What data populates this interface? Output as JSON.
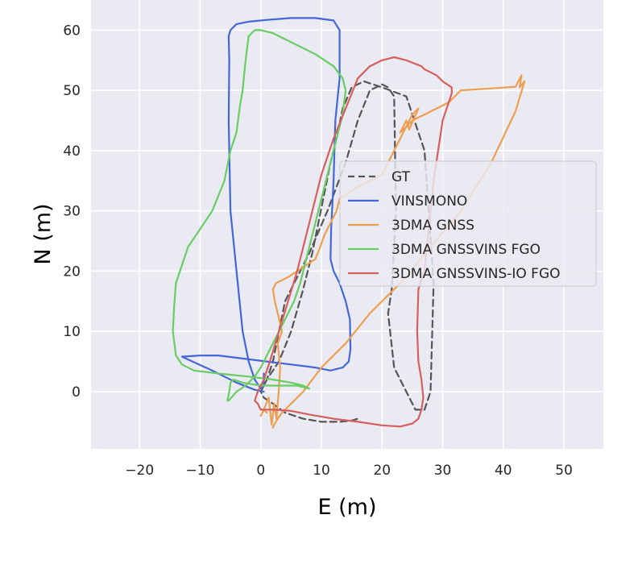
{
  "chart_data": {
    "type": "line",
    "title": "",
    "xlabel": "E (m)",
    "ylabel": "N (m)",
    "xlim": [
      -28,
      56.5
    ],
    "ylim": [
      -9.5,
      65
    ],
    "xticks": [
      -20,
      -10,
      0,
      10,
      20,
      30,
      40,
      50
    ],
    "yticks": [
      0,
      10,
      20,
      30,
      40,
      50,
      60
    ],
    "xtick_labels": [
      "−20",
      "−10",
      "0",
      "10",
      "20",
      "30",
      "40",
      "50"
    ],
    "ytick_labels": [
      "0",
      "10",
      "20",
      "30",
      "40",
      "50",
      "60"
    ],
    "grid": true,
    "legend_position": "center-right",
    "background": "#eaeaf2",
    "series": [
      {
        "name": "GT",
        "color": "#555555",
        "dash": true,
        "x": [
          0,
          1,
          2,
          3,
          4,
          6,
          8,
          11,
          14,
          16,
          18,
          20,
          21,
          22,
          22.3,
          21.6,
          21,
          22,
          24,
          25.5,
          27,
          28,
          28.5,
          27,
          24,
          20,
          17,
          15,
          13.5,
          12.5,
          11.5,
          10.5,
          9.5,
          8.5,
          7,
          5,
          3,
          1,
          0,
          0.5,
          2,
          4,
          7,
          10,
          13,
          15,
          16
        ],
        "y": [
          0,
          2,
          5,
          10,
          15,
          19,
          23,
          30,
          38,
          45,
          50,
          51,
          50.5,
          49,
          30,
          17,
          13,
          4,
          0,
          -3,
          -3,
          0,
          18,
          40,
          49,
          50.5,
          51.5,
          50.5,
          47,
          42,
          38,
          33,
          28,
          23,
          17,
          10,
          5,
          2,
          0,
          -1,
          -2,
          -3.5,
          -4.5,
          -5,
          -5,
          -4.8,
          -4.5
        ]
      },
      {
        "name": "VINSMONO",
        "color": "#4366d8",
        "dash": false,
        "x": [
          0.5,
          0.5,
          0,
          -1,
          -2,
          -3,
          -4,
          -5,
          -5.3,
          -5.2,
          -5.3,
          -5,
          -4,
          -2,
          1,
          5,
          9,
          12,
          13,
          13,
          12.3,
          12,
          11.6,
          11.5,
          12,
          13,
          14,
          14.7,
          14.8,
          14.5,
          13.5,
          11.5,
          9,
          5,
          1,
          -3,
          -7,
          -10,
          -13,
          -8,
          -4,
          -1,
          0.5
        ],
        "y": [
          3,
          1,
          0.5,
          2,
          5,
          10,
          20,
          30,
          45,
          55,
          59,
          60,
          61,
          61.4,
          61.7,
          62,
          62,
          61.6,
          60,
          52,
          45,
          35,
          27,
          22,
          20,
          18,
          15,
          12,
          7,
          5,
          4,
          3.5,
          4,
          4.5,
          5,
          5.5,
          6,
          6,
          5.8,
          3.5,
          1.5,
          0.3,
          0
        ]
      },
      {
        "name": "3DMA GNSS",
        "color": "#ed9f4f",
        "dash": false,
        "x": [
          0,
          0.5,
          1,
          0.5,
          1.3,
          1.8,
          2.2,
          2.6,
          3,
          3.2,
          2.8,
          3.5,
          2.8,
          2.3,
          2,
          2.5,
          3.5,
          4.5,
          6,
          7.5,
          9,
          9.8,
          10.5,
          11.5,
          12.5,
          13,
          14.5,
          16,
          18,
          20,
          22,
          24,
          25,
          26,
          24.5,
          24,
          23,
          25,
          27,
          29,
          31,
          33,
          36,
          39,
          42,
          42.5,
          43,
          42.7,
          43.5,
          42,
          38,
          33,
          28,
          23,
          18,
          14,
          10,
          7,
          5,
          3.5,
          2.8,
          2.2,
          2
        ],
        "y": [
          -4,
          -3,
          -3.5,
          -3,
          -1,
          -5.5,
          -2,
          -4.5,
          0.5,
          4,
          8,
          10,
          13,
          15,
          17,
          18,
          18.5,
          19,
          20,
          21,
          22,
          24,
          26,
          28,
          30,
          32,
          33,
          34,
          35,
          36,
          40,
          44,
          46,
          47,
          43.5,
          45,
          43,
          45,
          46,
          47,
          48,
          50,
          50.2,
          50.4,
          50.6,
          51.5,
          52.5,
          50.5,
          51.5,
          46.5,
          38,
          30,
          24,
          18,
          13,
          8,
          4,
          0,
          -2,
          -3.5,
          -4.5,
          -5.5,
          -6
        ]
      },
      {
        "name": "3DMA GNSSVINS FGO",
        "color": "#6acc64",
        "dash": false,
        "x": [
          -5.5,
          -5.2,
          -5,
          -4.5,
          -3,
          0,
          3,
          6,
          8,
          7,
          5,
          2,
          -2,
          -7,
          -11,
          -13,
          -14,
          -14.5,
          -14.3,
          -14,
          -13,
          -12,
          -10,
          -8,
          -6,
          -5,
          -4,
          -3.5,
          -3,
          -2.5,
          -2,
          -1,
          0,
          2,
          5,
          9,
          12,
          13.5,
          14,
          13.5,
          12.5,
          11.5,
          10.5,
          9.5,
          8.5,
          7.5,
          6.5,
          5.5,
          4,
          2.5,
          1,
          0,
          -1,
          -2.5,
          -4,
          -5.3
        ],
        "y": [
          -1.5,
          0,
          1.5,
          2,
          1.5,
          1,
          1,
          1,
          0.5,
          1,
          1.5,
          2,
          2.5,
          3,
          3.5,
          4.5,
          6,
          10,
          14,
          18,
          21,
          24,
          27,
          30,
          35,
          40,
          43,
          47,
          50,
          55,
          59,
          60,
          60,
          59.5,
          58,
          56,
          54,
          52,
          50,
          46,
          42,
          38,
          34,
          30,
          26,
          22,
          18,
          15,
          12,
          9,
          6,
          4,
          2.5,
          1,
          0,
          -1.5
        ]
      },
      {
        "name": "3DMA GNSSVINS-IO FGO",
        "color": "#d65f5f",
        "dash": false,
        "x": [
          -1,
          -0.5,
          0,
          0.5,
          1.5,
          3,
          4.5,
          6,
          8,
          10,
          12,
          14,
          16,
          18,
          20,
          22,
          24,
          26.5,
          27,
          28,
          29,
          29.5,
          30,
          31.5,
          31.5,
          30,
          28.5,
          28,
          27,
          26,
          25.8,
          26,
          26.5,
          26.8,
          26.5,
          26,
          25,
          23,
          20,
          16,
          12,
          8,
          5,
          2.5,
          1,
          0,
          -0.5,
          -1
        ],
        "y": [
          -1.5,
          0,
          1,
          2,
          5,
          10,
          15,
          20,
          28,
          36,
          42,
          47,
          52,
          54,
          55,
          55.5,
          55,
          54,
          53.5,
          53,
          52.5,
          52,
          51.5,
          50.5,
          49.5,
          45,
          35,
          30,
          20,
          17,
          10,
          5,
          2,
          -1,
          -3,
          -4.5,
          -5.3,
          -5.8,
          -5.6,
          -5,
          -4.5,
          -3.8,
          -3.2,
          -3,
          -3,
          -3,
          -2,
          -1.5
        ]
      }
    ]
  }
}
